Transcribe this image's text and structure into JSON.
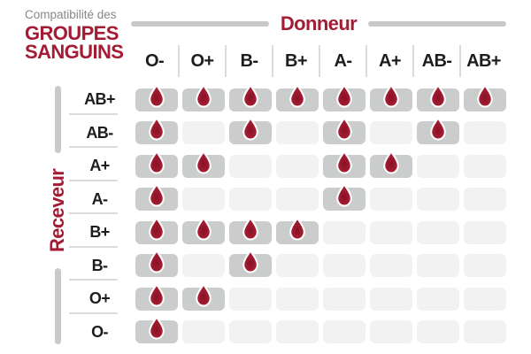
{
  "header": {
    "subtitle": "Compatibilité des",
    "title_line1": "GROUPES",
    "title_line2": "SANGUINS"
  },
  "axes": {
    "donor": "Donneur",
    "receiver": "Receveur"
  },
  "chart_data": {
    "type": "heatmap",
    "title": "Compatibilité des GROUPES SANGUINS",
    "x_axis_label": "Donneur",
    "y_axis_label": "Receveur",
    "columns": [
      "O-",
      "O+",
      "B-",
      "B+",
      "A-",
      "A+",
      "AB-",
      "AB+"
    ],
    "rows": [
      "AB+",
      "AB-",
      "A+",
      "A-",
      "B+",
      "B-",
      "O+",
      "O-"
    ],
    "values": [
      [
        1,
        1,
        1,
        1,
        1,
        1,
        1,
        1
      ],
      [
        1,
        0,
        1,
        0,
        1,
        0,
        1,
        0
      ],
      [
        1,
        1,
        0,
        0,
        1,
        1,
        0,
        0
      ],
      [
        1,
        0,
        0,
        0,
        1,
        0,
        0,
        0
      ],
      [
        1,
        1,
        1,
        1,
        0,
        0,
        0,
        0
      ],
      [
        1,
        0,
        1,
        0,
        0,
        0,
        0,
        0
      ],
      [
        1,
        1,
        0,
        0,
        0,
        0,
        0,
        0
      ],
      [
        1,
        0,
        0,
        0,
        0,
        0,
        0,
        0
      ]
    ],
    "marker_icon": "blood-drop-icon",
    "legend_position": "none",
    "grid": false
  },
  "colors": {
    "brand_red": "#A31C33",
    "drop_red": "#AB1E35",
    "drop_red_dark": "#8A1126",
    "cell_filled": "#CBCCCC",
    "cell_empty": "#F2F2F2",
    "divider_gray": "#DBDBDB",
    "bar_gray": "#C8C9C9",
    "text_dark": "#1D1D1B",
    "text_gray": "#878787"
  }
}
